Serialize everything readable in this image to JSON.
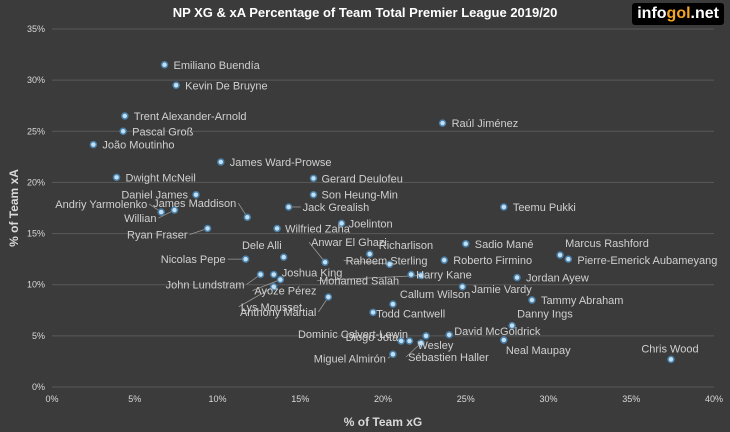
{
  "brand": {
    "part1": "info",
    "part2": "gol",
    "part3": ".net"
  },
  "chart_data": {
    "type": "scatter",
    "title": "NP XG & xA Percentage of Team Total Premier League 2019/20",
    "xlabel": "% of Team xG",
    "ylabel": "% of Team xA",
    "xlim": [
      0,
      40
    ],
    "ylim": [
      0,
      35
    ],
    "x_ticks": [
      "0%",
      "5%",
      "10%",
      "15%",
      "20%",
      "25%",
      "30%",
      "35%",
      "40%"
    ],
    "y_ticks": [
      "0%",
      "5%",
      "10%",
      "15%",
      "20%",
      "25%",
      "30%",
      "35%"
    ],
    "grid": "horizontal",
    "marker_color": "#bfe0f5",
    "points": [
      {
        "name": "Emiliano Buendía",
        "x": 6.8,
        "y": 31.5
      },
      {
        "name": "Kevin De Bruyne",
        "x": 7.5,
        "y": 29.5
      },
      {
        "name": "Trent Alexander-Arnold",
        "x": 4.4,
        "y": 26.5
      },
      {
        "name": "Pascal Groß",
        "x": 4.3,
        "y": 25.0
      },
      {
        "name": "João Moutinho",
        "x": 2.5,
        "y": 23.7
      },
      {
        "name": "Raúl Jiménez",
        "x": 23.6,
        "y": 25.8
      },
      {
        "name": "James Ward-Prowse",
        "x": 10.2,
        "y": 22.0
      },
      {
        "name": "Dwight McNeil",
        "x": 3.9,
        "y": 20.5
      },
      {
        "name": "Gerard Deulofeu",
        "x": 15.8,
        "y": 20.4
      },
      {
        "name": "Daniel James",
        "x": 8.7,
        "y": 18.8
      },
      {
        "name": "Son Heung-Min",
        "x": 15.8,
        "y": 18.8
      },
      {
        "name": "Andriy Yarmolenko",
        "x": 6.6,
        "y": 17.1
      },
      {
        "name": "Willian",
        "x": 7.4,
        "y": 17.3
      },
      {
        "name": "James Maddison",
        "x": 11.8,
        "y": 16.6
      },
      {
        "name": "Jack Grealish",
        "x": 14.3,
        "y": 17.6
      },
      {
        "name": "Teemu Pukki",
        "x": 27.3,
        "y": 17.6
      },
      {
        "name": "Joelinton",
        "x": 17.5,
        "y": 16.0
      },
      {
        "name": "Ryan Fraser",
        "x": 9.4,
        "y": 15.5
      },
      {
        "name": "Wilfried Zaha",
        "x": 13.6,
        "y": 15.5
      },
      {
        "name": "Sadio Mané",
        "x": 25.0,
        "y": 14.0
      },
      {
        "name": "Marcus Rashford",
        "x": 30.7,
        "y": 12.9
      },
      {
        "name": "Pierre-Emerick Aubameyang",
        "x": 31.2,
        "y": 12.5
      },
      {
        "name": "Anwar El Ghazi",
        "x": 16.5,
        "y": 12.2
      },
      {
        "name": "Dele Alli",
        "x": 14.0,
        "y": 12.7
      },
      {
        "name": "Nicolas Pepe",
        "x": 11.7,
        "y": 12.5
      },
      {
        "name": "Richarlison",
        "x": 19.2,
        "y": 13.0
      },
      {
        "name": "Roberto Firmino",
        "x": 23.7,
        "y": 12.4
      },
      {
        "name": "Raheem Sterling",
        "x": 20.4,
        "y": 12.0
      },
      {
        "name": "Jordan Ayew",
        "x": 28.1,
        "y": 10.7
      },
      {
        "name": "Harry Kane",
        "x": 21.7,
        "y": 11.0
      },
      {
        "name": "Mohamed Salah",
        "x": 22.3,
        "y": 10.9
      },
      {
        "name": "Joshua King",
        "x": 13.4,
        "y": 11.0
      },
      {
        "name": "John Lundstram",
        "x": 12.6,
        "y": 11.0
      },
      {
        "name": "Ayoze Pérez",
        "x": 13.8,
        "y": 10.5
      },
      {
        "name": "Jamie Vardy",
        "x": 24.8,
        "y": 9.8
      },
      {
        "name": "Lys Mousset",
        "x": 13.4,
        "y": 9.8
      },
      {
        "name": "Anthony Martial",
        "x": 16.7,
        "y": 8.8
      },
      {
        "name": "Callum Wilson",
        "x": 20.6,
        "y": 8.1
      },
      {
        "name": "Tammy Abraham",
        "x": 29.0,
        "y": 8.5
      },
      {
        "name": "Todd Cantwell",
        "x": 19.4,
        "y": 7.3
      },
      {
        "name": "Danny Ings",
        "x": 27.8,
        "y": 6.0
      },
      {
        "name": "Dominic Calvert-Lewin",
        "x": 22.6,
        "y": 5.0
      },
      {
        "name": "David McGoldrick",
        "x": 24.0,
        "y": 5.1
      },
      {
        "name": "Diogo Jota",
        "x": 21.1,
        "y": 4.5
      },
      {
        "name": "Wesley",
        "x": 21.6,
        "y": 4.5
      },
      {
        "name": "Neal Maupay",
        "x": 27.3,
        "y": 4.6
      },
      {
        "name": "Sébastien Haller",
        "x": 22.3,
        "y": 4.3
      },
      {
        "name": "Miguel Almirón",
        "x": 20.6,
        "y": 3.2
      },
      {
        "name": "Chris Wood",
        "x": 37.4,
        "y": 2.7
      }
    ]
  }
}
